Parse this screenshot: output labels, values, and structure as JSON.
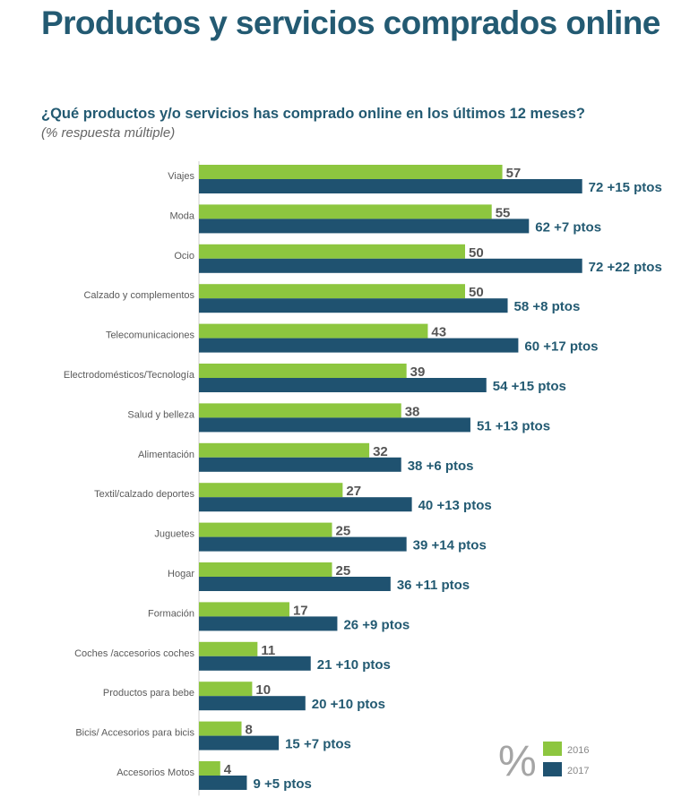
{
  "header": {
    "title": "Productos y servicios comprados online",
    "question": "¿Qué productos y/o servicios has comprado online en los últimos 12 meses?",
    "note": "(% respuesta múltiple)"
  },
  "colors": {
    "series_2016": "#8dc63f",
    "series_2017": "#1f5270",
    "text_dark": "#235a72"
  },
  "chart_data": {
    "type": "bar",
    "orientation": "horizontal",
    "categories": [
      "Viajes",
      "Moda",
      "Ocio",
      "Calzado y complementos",
      "Telecomunicaciones",
      "Electrodomésticos/Tecnología",
      "Salud y belleza",
      "Alimentación",
      "Textil/calzado deportes",
      "Juguetes",
      "Hogar",
      "Formación",
      "Coches /accesorios coches",
      "Productos para bebe",
      "Bicis/ Accesorios para bicis",
      "Accesorios Motos"
    ],
    "series": [
      {
        "name": "2016",
        "values": [
          57,
          55,
          50,
          50,
          43,
          39,
          38,
          32,
          27,
          25,
          25,
          17,
          11,
          10,
          8,
          4
        ]
      },
      {
        "name": "2017",
        "values": [
          72,
          62,
          72,
          58,
          60,
          54,
          51,
          38,
          40,
          39,
          36,
          26,
          21,
          20,
          15,
          9
        ]
      }
    ],
    "annotations": [
      "+15 ptos",
      "+7 ptos",
      "+22 ptos",
      "+8 ptos",
      "+17 ptos",
      "+15 ptos",
      "+13 ptos",
      "+6 ptos",
      "+13 ptos",
      "+14 ptos",
      "+11 ptos",
      "+9 ptos",
      "+10 ptos",
      "+10 ptos",
      "+7 ptos",
      "+5 ptos"
    ],
    "legend": {
      "symbol": "%",
      "position": "bottom-right",
      "entries": [
        "2016",
        "2017"
      ]
    },
    "xlim": [
      0,
      100
    ],
    "grid": false
  }
}
